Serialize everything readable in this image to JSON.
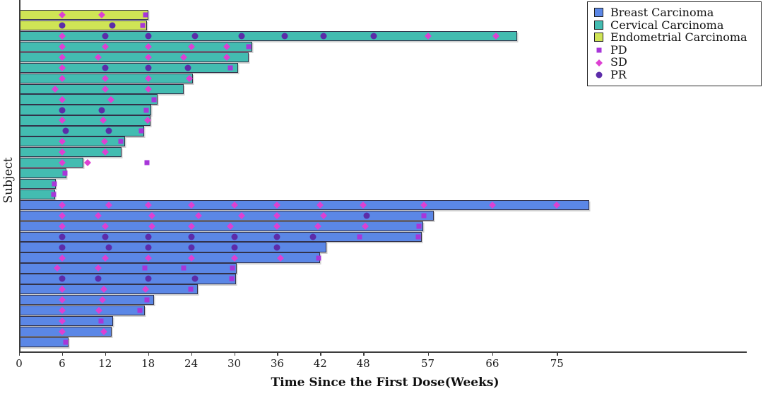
{
  "chart_data": {
    "type": "bar",
    "subtype": "swimmer-plot",
    "orientation": "horizontal",
    "title": "",
    "xlabel": "Time Since the First Dose(Weeks)",
    "ylabel": "Subject",
    "x_ticks": [
      0,
      6,
      12,
      18,
      24,
      30,
      36,
      42,
      48,
      57,
      66,
      75
    ],
    "xlim": [
      0,
      101
    ],
    "grid": false,
    "legend_position": "top-right",
    "groups": [
      {
        "id": "breast",
        "label": "Breast Carcinoma",
        "color": "#5b87e6"
      },
      {
        "id": "cervical",
        "label": "Cervical Carcinoma",
        "color": "#43bcb1"
      },
      {
        "id": "endometrial",
        "label": "Endometrial Carcinoma",
        "color": "#cfe455"
      }
    ],
    "markers": [
      {
        "id": "PD",
        "label": "PD",
        "shape": "square",
        "color": "#a736d9"
      },
      {
        "id": "SD",
        "label": "SD",
        "shape": "diamond",
        "color": "#dd40d2"
      },
      {
        "id": "PR",
        "label": "PR",
        "shape": "circle",
        "color": "#5c2ca9"
      }
    ],
    "subjects": [
      {
        "group": "endometrial",
        "weeks": 18.0,
        "events": [
          {
            "type": "SD",
            "week": 6
          },
          {
            "type": "SD",
            "week": 11.5
          },
          {
            "type": "PD",
            "week": 17.6
          }
        ]
      },
      {
        "group": "endometrial",
        "weeks": 17.8,
        "events": [
          {
            "type": "PR",
            "week": 6
          },
          {
            "type": "PR",
            "week": 13
          },
          {
            "type": "PD",
            "week": 17.2
          }
        ]
      },
      {
        "group": "cervical",
        "weeks": 69.5,
        "events": [
          {
            "type": "SD",
            "week": 6
          },
          {
            "type": "PR",
            "week": 12
          },
          {
            "type": "PR",
            "week": 18
          },
          {
            "type": "PR",
            "week": 24.5
          },
          {
            "type": "PR",
            "week": 31
          },
          {
            "type": "PR",
            "week": 37
          },
          {
            "type": "PR",
            "week": 42.5
          },
          {
            "type": "PR",
            "week": 49.5
          },
          {
            "type": "SD",
            "week": 57
          },
          {
            "type": "SD",
            "week": 66.5
          }
        ]
      },
      {
        "group": "cervical",
        "weeks": 32.5,
        "events": [
          {
            "type": "SD",
            "week": 6
          },
          {
            "type": "SD",
            "week": 12
          },
          {
            "type": "SD",
            "week": 18
          },
          {
            "type": "SD",
            "week": 24
          },
          {
            "type": "SD",
            "week": 29
          },
          {
            "type": "PD",
            "week": 32
          }
        ]
      },
      {
        "group": "cervical",
        "weeks": 32.0,
        "events": [
          {
            "type": "SD",
            "week": 6
          },
          {
            "type": "SD",
            "week": 11
          },
          {
            "type": "SD",
            "week": 18
          },
          {
            "type": "SD",
            "week": 23
          },
          {
            "type": "SD",
            "week": 29
          }
        ]
      },
      {
        "group": "cervical",
        "weeks": 30.5,
        "events": [
          {
            "type": "SD",
            "week": 6
          },
          {
            "type": "PR",
            "week": 12
          },
          {
            "type": "PR",
            "week": 18
          },
          {
            "type": "PR",
            "week": 23.5
          },
          {
            "type": "PD",
            "week": 29.5
          }
        ]
      },
      {
        "group": "cervical",
        "weeks": 24.2,
        "events": [
          {
            "type": "SD",
            "week": 6
          },
          {
            "type": "SD",
            "week": 12
          },
          {
            "type": "SD",
            "week": 18
          },
          {
            "type": "SD",
            "week": 23.7
          }
        ]
      },
      {
        "group": "cervical",
        "weeks": 23.0,
        "events": [
          {
            "type": "SD",
            "week": 5
          },
          {
            "type": "SD",
            "week": 12
          },
          {
            "type": "SD",
            "week": 18
          }
        ]
      },
      {
        "group": "cervical",
        "weeks": 19.3,
        "events": [
          {
            "type": "SD",
            "week": 6
          },
          {
            "type": "SD",
            "week": 12.8
          },
          {
            "type": "PD",
            "week": 18.8
          }
        ]
      },
      {
        "group": "cervical",
        "weeks": 18.4,
        "events": [
          {
            "type": "PR",
            "week": 6
          },
          {
            "type": "PR",
            "week": 11.5
          },
          {
            "type": "PD",
            "week": 17.7
          }
        ]
      },
      {
        "group": "cervical",
        "weeks": 18.3,
        "events": [
          {
            "type": "SD",
            "week": 6
          },
          {
            "type": "SD",
            "week": 11.7
          },
          {
            "type": "SD",
            "week": 17.9
          }
        ]
      },
      {
        "group": "cervical",
        "weeks": 17.4,
        "events": [
          {
            "type": "PR",
            "week": 6.5
          },
          {
            "type": "PR",
            "week": 12.5
          },
          {
            "type": "PD",
            "week": 17
          }
        ]
      },
      {
        "group": "cervical",
        "weeks": 14.8,
        "events": [
          {
            "type": "SD",
            "week": 6
          },
          {
            "type": "SD",
            "week": 11.9
          },
          {
            "type": "PD",
            "week": 14.2
          }
        ]
      },
      {
        "group": "cervical",
        "weeks": 14.3,
        "events": [
          {
            "type": "SD",
            "week": 6
          },
          {
            "type": "SD",
            "week": 12
          }
        ]
      },
      {
        "group": "cervical",
        "weeks": 9.0,
        "events": [
          {
            "type": "SD",
            "week": 6
          },
          {
            "type": "SD",
            "week": 9.6
          },
          {
            "type": "PD",
            "week": 17.8
          }
        ]
      },
      {
        "group": "cervical",
        "weeks": 6.6,
        "events": [
          {
            "type": "PD",
            "week": 6.4
          }
        ]
      },
      {
        "group": "cervical",
        "weeks": 5.1,
        "events": [
          {
            "type": "PD",
            "week": 4.9
          }
        ]
      },
      {
        "group": "cervical",
        "weeks": 5.0,
        "events": [
          {
            "type": "PD",
            "week": 4.8
          }
        ]
      },
      {
        "group": "breast",
        "weeks": 79.5,
        "events": [
          {
            "type": "SD",
            "week": 6
          },
          {
            "type": "SD",
            "week": 12.5
          },
          {
            "type": "SD",
            "week": 18
          },
          {
            "type": "SD",
            "week": 24
          },
          {
            "type": "SD",
            "week": 30
          },
          {
            "type": "SD",
            "week": 36
          },
          {
            "type": "SD",
            "week": 42
          },
          {
            "type": "SD",
            "week": 48
          },
          {
            "type": "SD",
            "week": 56.5
          },
          {
            "type": "SD",
            "week": 66
          },
          {
            "type": "SD",
            "week": 75
          }
        ]
      },
      {
        "group": "breast",
        "weeks": 57.8,
        "events": [
          {
            "type": "SD",
            "week": 6
          },
          {
            "type": "SD",
            "week": 11
          },
          {
            "type": "SD",
            "week": 18.5
          },
          {
            "type": "SD",
            "week": 25
          },
          {
            "type": "SD",
            "week": 31
          },
          {
            "type": "SD",
            "week": 36
          },
          {
            "type": "SD",
            "week": 42.5
          },
          {
            "type": "PR",
            "week": 48.5
          },
          {
            "type": "PD",
            "week": 56.5
          }
        ]
      },
      {
        "group": "breast",
        "weeks": 56.4,
        "events": [
          {
            "type": "SD",
            "week": 6
          },
          {
            "type": "SD",
            "week": 12
          },
          {
            "type": "SD",
            "week": 18.5
          },
          {
            "type": "SD",
            "week": 24
          },
          {
            "type": "SD",
            "week": 29.5
          },
          {
            "type": "SD",
            "week": 36
          },
          {
            "type": "SD",
            "week": 41.7
          },
          {
            "type": "SD",
            "week": 48.3
          },
          {
            "type": "PD",
            "week": 55.8
          }
        ]
      },
      {
        "group": "breast",
        "weeks": 56.2,
        "events": [
          {
            "type": "PR",
            "week": 6
          },
          {
            "type": "PR",
            "week": 12
          },
          {
            "type": "PR",
            "week": 18
          },
          {
            "type": "PR",
            "week": 24
          },
          {
            "type": "PR",
            "week": 30
          },
          {
            "type": "PR",
            "week": 36
          },
          {
            "type": "PR",
            "week": 41
          },
          {
            "type": "PD",
            "week": 47.5
          },
          {
            "type": "PD",
            "week": 55.7
          }
        ]
      },
      {
        "group": "breast",
        "weeks": 42.9,
        "events": [
          {
            "type": "PR",
            "week": 6
          },
          {
            "type": "PR",
            "week": 12.5
          },
          {
            "type": "PR",
            "week": 18
          },
          {
            "type": "PR",
            "week": 24
          },
          {
            "type": "PR",
            "week": 30
          },
          {
            "type": "PR",
            "week": 36
          }
        ]
      },
      {
        "group": "breast",
        "weeks": 42.0,
        "events": [
          {
            "type": "SD",
            "week": 6
          },
          {
            "type": "SD",
            "week": 12
          },
          {
            "type": "SD",
            "week": 18
          },
          {
            "type": "SD",
            "week": 24
          },
          {
            "type": "SD",
            "week": 30
          },
          {
            "type": "SD",
            "week": 36.5
          },
          {
            "type": "PD",
            "week": 41.8
          }
        ]
      },
      {
        "group": "breast",
        "weeks": 30.3,
        "events": [
          {
            "type": "SD",
            "week": 5.3
          },
          {
            "type": "SD",
            "week": 11
          },
          {
            "type": "PD",
            "week": 17.5
          },
          {
            "type": "PD",
            "week": 23
          },
          {
            "type": "PD",
            "week": 29.8
          }
        ]
      },
      {
        "group": "breast",
        "weeks": 30.2,
        "events": [
          {
            "type": "PR",
            "week": 6
          },
          {
            "type": "PR",
            "week": 11
          },
          {
            "type": "PR",
            "week": 18
          },
          {
            "type": "PR",
            "week": 24.5
          },
          {
            "type": "PD",
            "week": 29.7
          }
        ]
      },
      {
        "group": "breast",
        "weeks": 24.9,
        "events": [
          {
            "type": "SD",
            "week": 6
          },
          {
            "type": "SD",
            "week": 11.8
          },
          {
            "type": "SD",
            "week": 17.6
          },
          {
            "type": "PD",
            "week": 23.9
          }
        ]
      },
      {
        "group": "breast",
        "weeks": 18.8,
        "events": [
          {
            "type": "SD",
            "week": 6
          },
          {
            "type": "SD",
            "week": 11.6
          },
          {
            "type": "PD",
            "week": 17.8
          }
        ]
      },
      {
        "group": "breast",
        "weeks": 17.5,
        "events": [
          {
            "type": "SD",
            "week": 6
          },
          {
            "type": "SD",
            "week": 11.1
          },
          {
            "type": "PD",
            "week": 16.8
          }
        ]
      },
      {
        "group": "breast",
        "weeks": 13.1,
        "events": [
          {
            "type": "SD",
            "week": 6
          },
          {
            "type": "PD",
            "week": 11.4
          }
        ]
      },
      {
        "group": "breast",
        "weeks": 12.9,
        "events": [
          {
            "type": "SD",
            "week": 6
          },
          {
            "type": "SD",
            "week": 11.8
          }
        ]
      },
      {
        "group": "breast",
        "weeks": 6.9,
        "events": [
          {
            "type": "PD",
            "week": 6.5
          }
        ]
      }
    ]
  }
}
